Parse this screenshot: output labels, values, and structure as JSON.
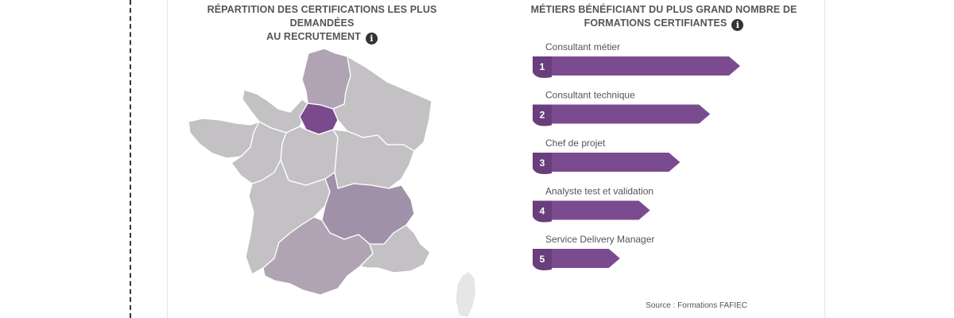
{
  "map": {
    "title_line1": "RÉPARTITION DES CERTIFICATIONS LES PLUS DEMANDÉES",
    "title_line2": "AU RECRUTEMENT",
    "info_icon": "info-icon",
    "colors": {
      "highest": "#7a4a8c",
      "high": "#a090a8",
      "medium": "#b0a4b4",
      "low": "#c4c1c5",
      "lowest": "#e6e6e6"
    },
    "regions": [
      {
        "name": "ile-de-france",
        "level": "highest"
      },
      {
        "name": "hauts-de-france",
        "level": "medium"
      },
      {
        "name": "normandie",
        "level": "low"
      },
      {
        "name": "grand-est",
        "level": "low"
      },
      {
        "name": "bretagne",
        "level": "low"
      },
      {
        "name": "pays-de-la-loire",
        "level": "low"
      },
      {
        "name": "centre-val-de-loire",
        "level": "low"
      },
      {
        "name": "bourgogne-franche-comte",
        "level": "low"
      },
      {
        "name": "nouvelle-aquitaine",
        "level": "low"
      },
      {
        "name": "auvergne-rhone-alpes",
        "level": "high"
      },
      {
        "name": "occitanie",
        "level": "medium"
      },
      {
        "name": "provence-alpes-cote-d-azur",
        "level": "low"
      },
      {
        "name": "corse",
        "level": "lowest"
      }
    ]
  },
  "chart": {
    "title_line1": "MÉTIERS BÉNÉFICIANT DU PLUS GRAND NOMBRE DE",
    "title_line2": "FORMATIONS CERTIFIANTES",
    "info_icon": "info-icon",
    "source": "Source : Formations FAFIEC"
  },
  "chart_data": {
    "type": "bar",
    "orientation": "horizontal",
    "categories": [
      "Consultant métier",
      "Consultant technique",
      "Chef de projet",
      "Analyste test et validation",
      "Service Delivery Manager"
    ],
    "ranks": [
      "1",
      "2",
      "3",
      "4",
      "5"
    ],
    "values": [
      5,
      4,
      3,
      2,
      1
    ],
    "color": "#7b4b8f",
    "title": "MÉTIERS BÉNÉFICIANT DU PLUS GRAND NOMBRE DE FORMATIONS CERTIFIANTES",
    "source": "Source : Formations FAFIEC"
  }
}
